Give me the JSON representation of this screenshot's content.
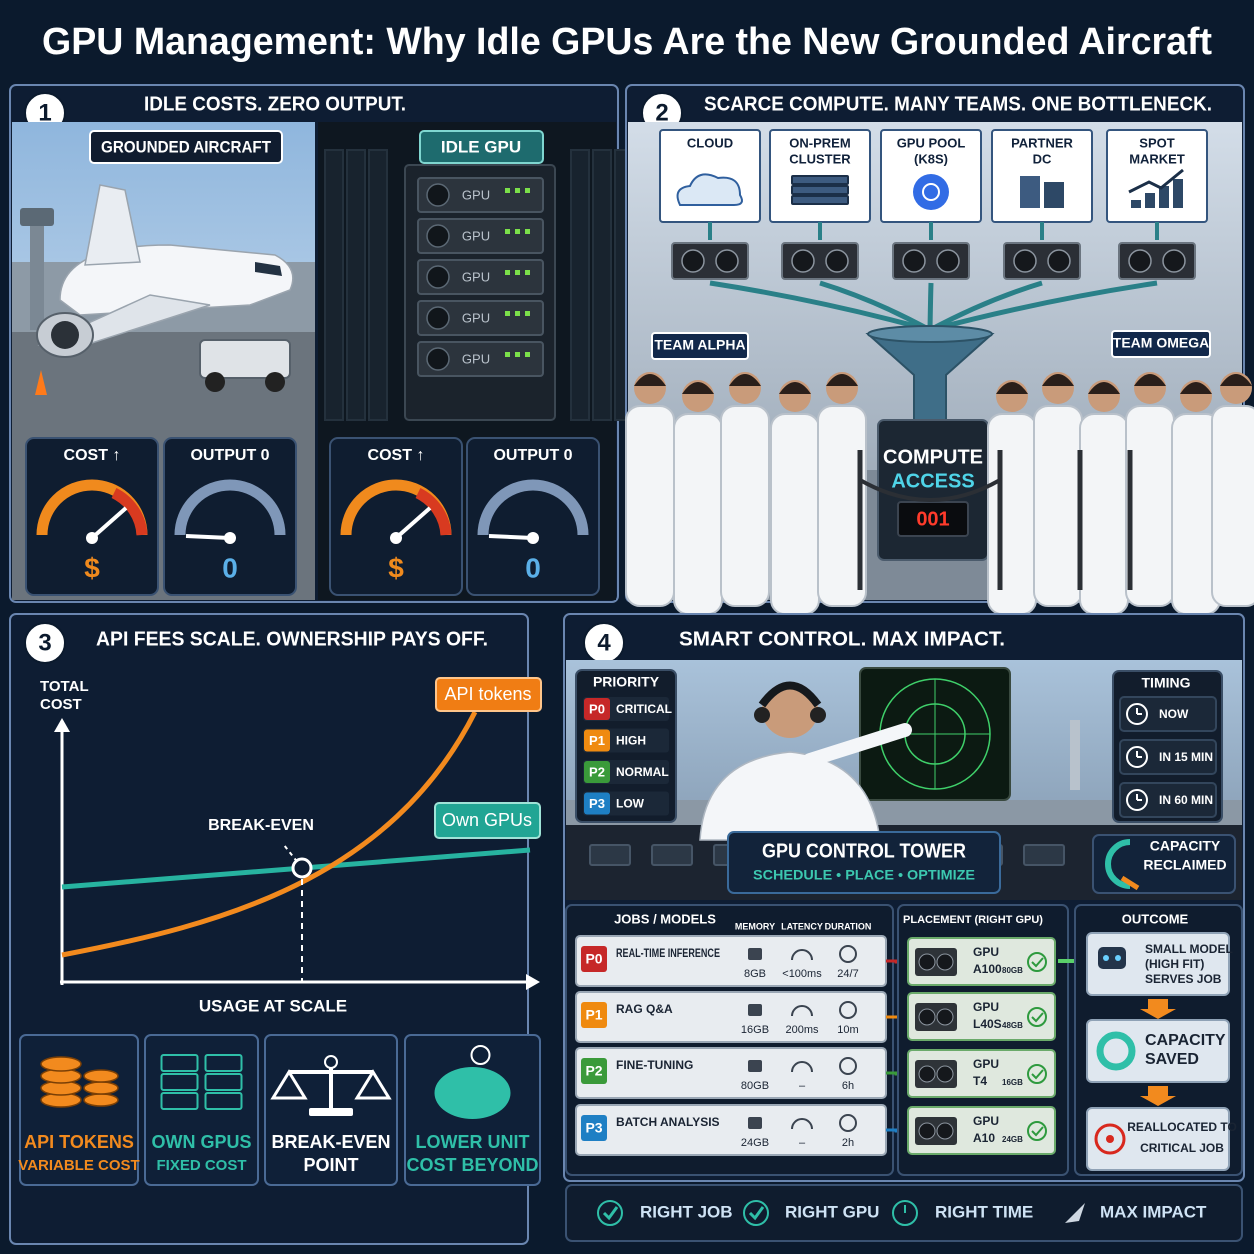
{
  "title": "GPU Management: Why Idle GPUs Are the New Grounded Aircraft",
  "panel1": {
    "number": "1",
    "heading": "IDLE COSTS. ZERO OUTPUT.",
    "left_label": "GROUNDED AIRCRAFT",
    "right_label": "IDLE GPU",
    "server_units": [
      "GPU",
      "GPU",
      "GPU",
      "GPU",
      "GPU"
    ],
    "gauges": [
      {
        "label": "COST ↑",
        "value": "$"
      },
      {
        "label": "OUTPUT 0",
        "value": "0"
      },
      {
        "label": "COST ↑",
        "value": "$"
      },
      {
        "label": "OUTPUT 0",
        "value": "0"
      }
    ]
  },
  "panel2": {
    "number": "2",
    "heading": "SCARCE COMPUTE. MANY TEAMS. ONE BOTTLENECK.",
    "sources": [
      [
        "CLOUD"
      ],
      [
        "ON-PREM",
        "CLUSTER"
      ],
      [
        "GPU POOL",
        "(K8S)"
      ],
      [
        "PARTNER",
        "DC"
      ],
      [
        "SPOT",
        "MARKET"
      ]
    ],
    "teams": [
      "TEAM ALPHA",
      "TEAM OMEGA"
    ],
    "gate": [
      "COMPUTE",
      "ACCESS"
    ],
    "display": "001"
  },
  "panel3": {
    "number": "3",
    "heading": "API FEES SCALE. OWNERSHIP PAYS OFF.",
    "y_label": [
      "TOTAL",
      "COST"
    ],
    "x_label": "USAGE AT SCALE",
    "curves": [
      "API tokens",
      "Own GPUs"
    ],
    "crossing": "BREAK-EVEN",
    "cards": [
      [
        "API TOKENS",
        "VARIABLE COST"
      ],
      [
        "OWN GPUS",
        "FIXED COST"
      ],
      [
        "BREAK-EVEN",
        "POINT"
      ],
      [
        "LOWER UNIT",
        "COST BEYOND"
      ]
    ]
  },
  "panel4": {
    "number": "4",
    "heading": "SMART CONTROL. MAX IMPACT.",
    "priority": {
      "title": "PRIORITY",
      "items": [
        {
          "tag": "P0",
          "label": "CRITICAL"
        },
        {
          "tag": "P1",
          "label": "HIGH"
        },
        {
          "tag": "P2",
          "label": "NORMAL"
        },
        {
          "tag": "P3",
          "label": "LOW"
        }
      ]
    },
    "timing": {
      "title": "TIMING",
      "items": [
        "NOW",
        "IN 15 MIN",
        "IN 60 MIN"
      ]
    },
    "tower": {
      "title": "GPU CONTROL TOWER",
      "subtitle": "SCHEDULE • PLACE • OPTIMIZE"
    },
    "reclaimed": [
      "CAPACITY",
      "RECLAIMED"
    ],
    "jobs": {
      "title": "JOBS / MODELS",
      "columns": [
        "MEMORY",
        "LATENCY",
        "DURATION"
      ],
      "rows": [
        {
          "tag": "P0",
          "name": "REAL-TIME INFERENCE",
          "memory": "8GB",
          "latency": "<100ms",
          "duration": "24/7"
        },
        {
          "tag": "P1",
          "name": "RAG Q&A",
          "memory": "16GB",
          "latency": "200ms",
          "duration": "10m"
        },
        {
          "tag": "P2",
          "name": "FINE-TUNING",
          "memory": "80GB",
          "latency": "–",
          "duration": "6h"
        },
        {
          "tag": "P3",
          "name": "BATCH ANALYSIS",
          "memory": "24GB",
          "latency": "–",
          "duration": "2h"
        }
      ]
    },
    "placement": {
      "title": "PLACEMENT (RIGHT GPU)",
      "gpus": [
        {
          "label": "GPU",
          "model": "A100",
          "memory": "80GB"
        },
        {
          "label": "GPU",
          "model": "L40S",
          "memory": "48GB"
        },
        {
          "label": "GPU",
          "model": "T4",
          "memory": "16GB"
        },
        {
          "label": "GPU",
          "model": "A10",
          "memory": "24GB"
        }
      ]
    },
    "outcome": {
      "title": "OUTCOME",
      "cards": [
        [
          "SMALL MODEL",
          "(HIGH FIT)",
          "SERVES JOB"
        ],
        [
          "CAPACITY",
          "SAVED"
        ],
        [
          "REALLOCATED TO",
          "CRITICAL JOB"
        ]
      ]
    },
    "footer": [
      "RIGHT JOB",
      "RIGHT GPU",
      "RIGHT TIME",
      "MAX IMPACT"
    ]
  }
}
